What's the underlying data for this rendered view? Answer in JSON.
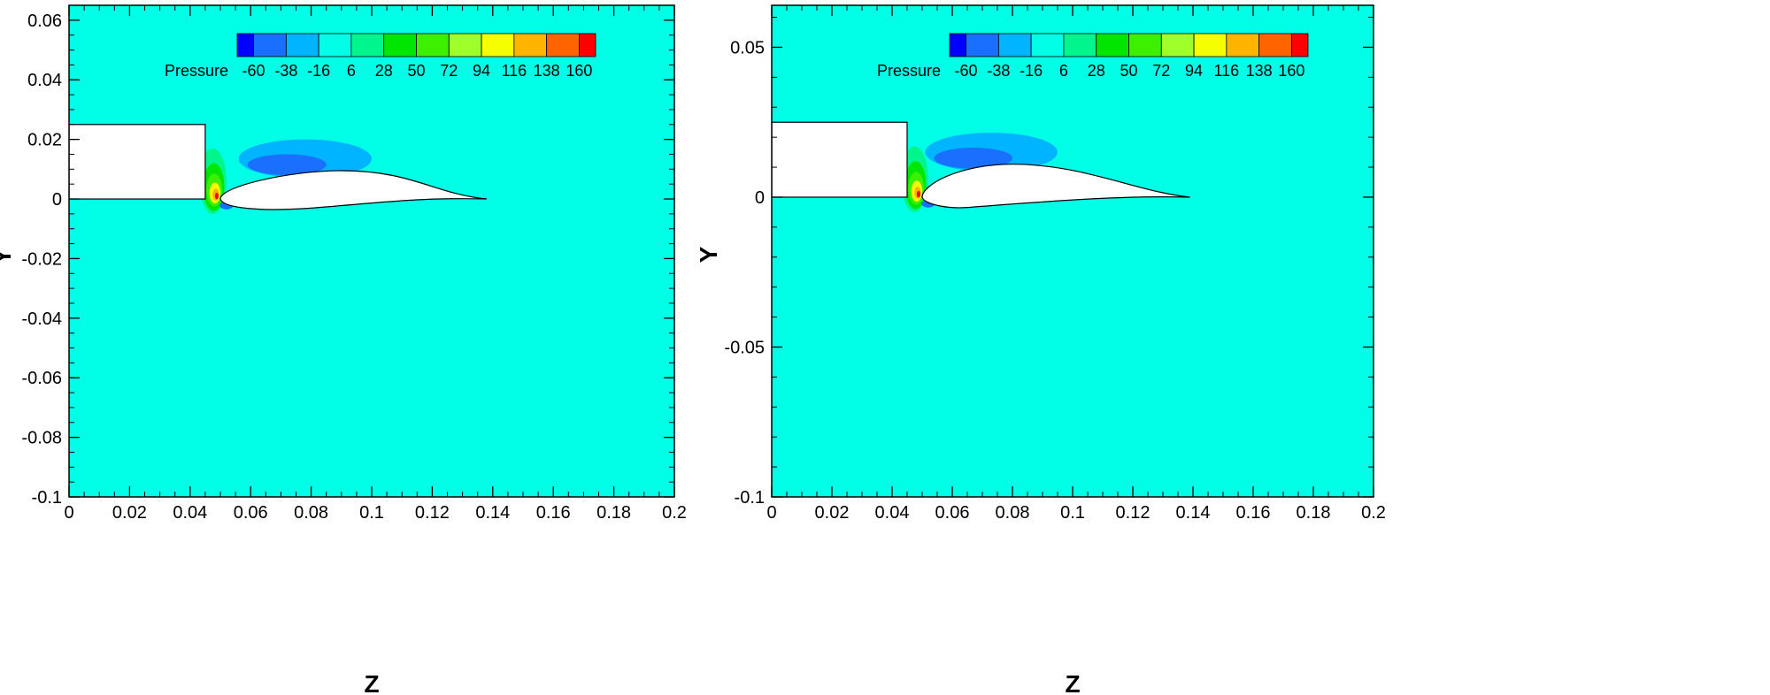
{
  "chart_data": [
    {
      "type": "heatmap",
      "xlabel": "Z",
      "ylabel": "Y",
      "xlim": [
        0,
        0.2
      ],
      "ylim": [
        -0.1,
        0.065
      ],
      "xticks": [
        "0",
        "0.02",
        "0.04",
        "0.06",
        "0.08",
        "0.1",
        "0.12",
        "0.14",
        "0.16",
        "0.18",
        "0.2"
      ],
      "yticks": [
        {
          "value": 0.06,
          "label": "0.06"
        },
        {
          "value": 0.04,
          "label": "0.04"
        },
        {
          "value": 0.02,
          "label": "0.02"
        },
        {
          "value": 0,
          "label": "0"
        },
        {
          "value": -0.02,
          "label": "-0.02"
        },
        {
          "value": -0.04,
          "label": "-0.04"
        },
        {
          "value": -0.06,
          "label": "-0.06"
        },
        {
          "value": -0.08,
          "label": "-0.08"
        },
        {
          "value": -0.1,
          "label": "-0.1"
        }
      ],
      "background_color": "#00ffe6",
      "colorbar": {
        "title": "Pressure",
        "labels": [
          "-60",
          "-38",
          "-16",
          "6",
          "28",
          "50",
          "72",
          "94",
          "116",
          "138",
          "160"
        ],
        "colors": [
          "#0000ff",
          "#1a6fff",
          "#00b4ff",
          "#00ffe6",
          "#00f58c",
          "#00e600",
          "#3cf000",
          "#a0ff28",
          "#f5ff00",
          "#ffb400",
          "#ff6400",
          "#ff0000"
        ]
      },
      "block": {
        "z_min": 0.0,
        "z_max": 0.045,
        "y_min": 0.0,
        "y_max": 0.025
      },
      "airfoil": {
        "leading_edge": [
          0.05,
          0.0
        ],
        "trailing_edge": [
          0.138,
          0.0
        ],
        "max_camber_y": 0.0095,
        "camber_z": 0.09
      }
    },
    {
      "type": "heatmap",
      "xlabel": "Z",
      "ylabel": "Y",
      "xlim": [
        0,
        0.2
      ],
      "ylim": [
        -0.1,
        0.064
      ],
      "xticks": [
        "0",
        "0.02",
        "0.04",
        "0.06",
        "0.08",
        "0.1",
        "0.12",
        "0.14",
        "0.16",
        "0.18",
        "0.2"
      ],
      "yticks": [
        {
          "value": 0.05,
          "label": "0.05"
        },
        {
          "value": 0,
          "label": "0"
        },
        {
          "value": -0.05,
          "label": "-0.05"
        },
        {
          "value": -0.1,
          "label": "-0.1"
        }
      ],
      "background_color": "#00ffe6",
      "colorbar": {
        "title": "Pressure",
        "labels": [
          "-60",
          "-38",
          "-16",
          "6",
          "28",
          "50",
          "72",
          "94",
          "116",
          "138",
          "160"
        ],
        "colors": [
          "#0000ff",
          "#1a6fff",
          "#00b4ff",
          "#00ffe6",
          "#00f58c",
          "#00e600",
          "#3cf000",
          "#a0ff28",
          "#f5ff00",
          "#ffb400",
          "#ff6400",
          "#ff0000"
        ]
      },
      "block": {
        "z_min": 0.0,
        "z_max": 0.045,
        "y_min": 0.0,
        "y_max": 0.025
      },
      "airfoil": {
        "leading_edge": [
          0.05,
          0.0
        ],
        "trailing_edge": [
          0.139,
          0.0
        ],
        "max_camber_y": 0.011,
        "camber_z": 0.08
      }
    }
  ]
}
